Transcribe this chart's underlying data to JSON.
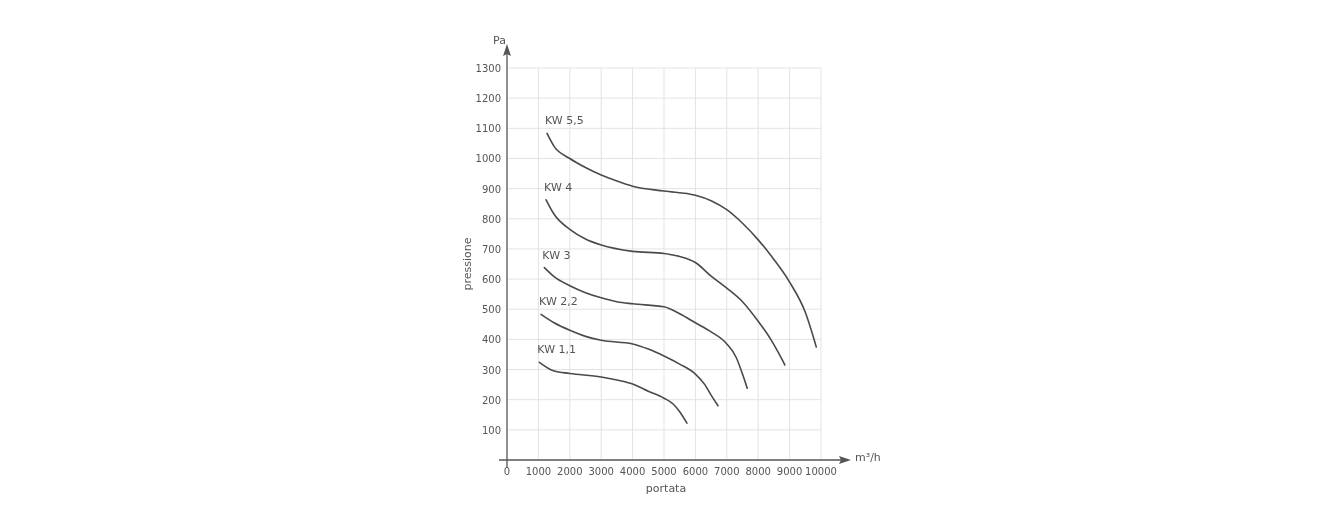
{
  "chart_data": {
    "type": "line",
    "xlabel": "portata",
    "ylabel": "pressione",
    "annotations": [
      "Pa",
      "m³/h"
    ],
    "xlim": [
      0,
      10000
    ],
    "ylim": [
      0,
      1300
    ],
    "xticks": [
      0,
      1000,
      2000,
      3000,
      4000,
      5000,
      6000,
      7000,
      8000,
      9000,
      10000
    ],
    "yticks": [
      100,
      200,
      300,
      400,
      500,
      600,
      700,
      800,
      900,
      1000,
      1100,
      1200,
      1300
    ],
    "grid": true,
    "marker": "none",
    "line_style": "solid",
    "series": [
      {
        "name": "KW 5,5",
        "color": "#4a4a4a",
        "x": [
          1275,
          1500,
          2000,
          2500,
          3000,
          3500,
          4000,
          5000,
          6000,
          6500,
          7000,
          7500,
          8000,
          8500,
          9000,
          9500,
          9850
        ],
        "values": [
          1083,
          1040,
          1000,
          970,
          945,
          925,
          908,
          892,
          878,
          860,
          830,
          785,
          730,
          665,
          590,
          490,
          375
        ]
      },
      {
        "name": "KW 4",
        "color": "#4a4a4a",
        "x": [
          1245,
          1500,
          2000,
          2500,
          3000,
          4000,
          5000,
          5500,
          6000,
          6500,
          7000,
          7500,
          8000,
          8400,
          8700,
          8850
        ],
        "values": [
          863,
          815,
          765,
          733,
          713,
          692,
          685,
          675,
          655,
          610,
          570,
          525,
          460,
          400,
          345,
          315
        ]
      },
      {
        "name": "KW 3",
        "color": "#4a4a4a",
        "x": [
          1190,
          1500,
          2000,
          2500,
          3000,
          3500,
          4000,
          5000,
          5500,
          6000,
          6500,
          7000,
          7300,
          7500,
          7650
        ],
        "values": [
          638,
          608,
          578,
          555,
          538,
          525,
          518,
          508,
          485,
          455,
          425,
          385,
          340,
          285,
          238
        ]
      },
      {
        "name": "KW 2,2",
        "color": "#4a4a4a",
        "x": [
          1085,
          1500,
          2000,
          2500,
          3000,
          4000,
          4500,
          5000,
          5500,
          6000,
          6300,
          6500,
          6720
        ],
        "values": [
          483,
          455,
          430,
          410,
          397,
          385,
          368,
          345,
          318,
          285,
          250,
          215,
          180
        ]
      },
      {
        "name": "KW 1,1",
        "color": "#4a4a4a",
        "x": [
          1030,
          1500,
          2000,
          3000,
          3500,
          4000,
          4500,
          5000,
          5300,
          5500,
          5730
        ],
        "values": [
          324,
          295,
          287,
          275,
          265,
          252,
          228,
          205,
          185,
          160,
          122
        ]
      }
    ]
  }
}
